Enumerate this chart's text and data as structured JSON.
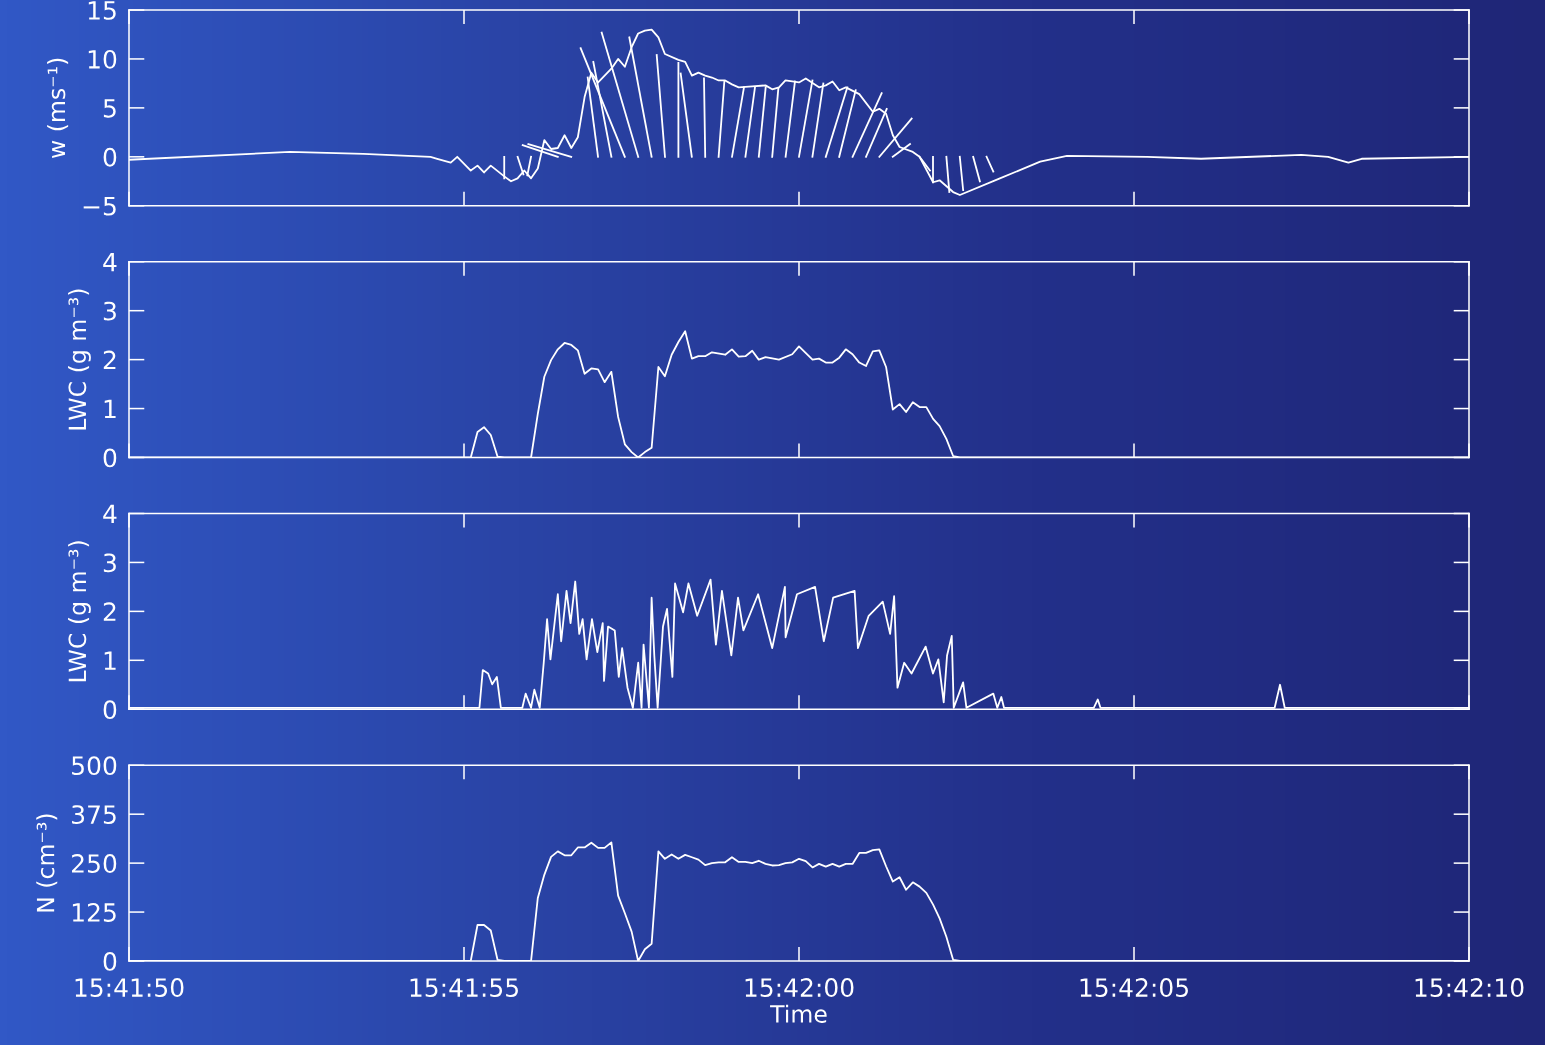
{
  "chart_data": [
    {
      "type": "line",
      "ylabel": "w (ms⁻¹)",
      "tick_labels": "y",
      "xlim": [
        15.697222,
        15.702778
      ],
      "xticks": [
        {
          "value": 15.697222,
          "label": null
        },
        {
          "value": 15.698611,
          "label": null
        },
        {
          "value": 15.7,
          "label": null
        },
        {
          "value": 15.701389,
          "label": null
        },
        {
          "value": 15.702778,
          "label": null
        }
      ],
      "ylim": [
        -5,
        15
      ],
      "yticks": [
        -5,
        0,
        5,
        10,
        15
      ],
      "series": [
        {
          "color": "#ffffff",
          "x": [
            15.697222,
            15.697889,
            15.698194,
            15.698472,
            15.6985,
            15.698556,
            15.698583,
            15.698639,
            15.698667,
            15.698694,
            15.698722,
            15.698778,
            15.698806,
            15.698833,
            15.698861,
            15.698889,
            15.698917,
            15.698944,
            15.698972,
            15.699,
            15.699028,
            15.699056,
            15.699083,
            15.699111,
            15.699139,
            15.699167,
            15.699222,
            15.69925,
            15.699278,
            15.699306,
            15.699333,
            15.699361,
            15.699389,
            15.699417,
            15.699444,
            15.6995,
            15.699528,
            15.699556,
            15.699583,
            15.699611,
            15.699639,
            15.699667,
            15.699694,
            15.699722,
            15.69975,
            15.699806,
            15.699861,
            15.699889,
            15.699917,
            15.699944,
            15.7,
            15.700028,
            15.700083,
            15.700111,
            15.700139,
            15.700167,
            15.700194,
            15.70025,
            15.700306,
            15.700333,
            15.700361,
            15.700389,
            15.700417,
            15.700472,
            15.7005,
            15.700556,
            15.700583,
            15.700639,
            15.700667,
            15.700833,
            15.701,
            15.701111,
            15.701444,
            15.701667,
            15.702083,
            15.702194,
            15.702278,
            15.702333,
            15.702778
          ],
          "values": [
            -0.3,
            0.5,
            0.3,
            0.0,
            -0.2,
            -0.6,
            0,
            -1.4,
            -0.9,
            -1.6,
            -0.9,
            -2.0,
            -2.5,
            -2.2,
            -1.4,
            -2.2,
            -1.2,
            1.7,
            0.8,
            0.9,
            2.2,
            0.9,
            2.0,
            6.1,
            8.6,
            7.6,
            9.0,
            10.0,
            9.2,
            11.2,
            12.6,
            12.9,
            13.0,
            12.2,
            10.5,
            9.9,
            9.7,
            8.3,
            8.6,
            8.3,
            8.1,
            7.8,
            7.8,
            7.4,
            7.1,
            7.2,
            7.3,
            6.9,
            7.1,
            7.8,
            7.6,
            8.0,
            7.1,
            7.3,
            7.7,
            6.8,
            7.1,
            6.4,
            4.6,
            4.9,
            4.4,
            2.2,
            1.0,
            0.5,
            0.0,
            -2.6,
            -2.4,
            -3.6,
            -3.9,
            -2.2,
            -0.5,
            0.1,
            0,
            -0.2,
            0.2,
            0,
            -0.6,
            -0.2,
            0
          ]
        },
        {
          "color": "#ffffff",
          "x": [
            15.6987778,
            15.6987778
          ],
          "values": [
            0,
            -2.2
          ]
        },
        {
          "color": "#ffffff",
          "x": [
            15.6988333,
            15.6988572
          ],
          "values": [
            0,
            -1.8
          ]
        },
        {
          "color": "#ffffff",
          "x": [
            15.6988889,
            15.6988736
          ],
          "values": [
            0,
            -1.9
          ]
        },
        {
          "color": "#ffffff",
          "x": [
            15.699,
            15.6988544
          ],
          "values": [
            0,
            1.2
          ]
        },
        {
          "color": "#ffffff",
          "x": [
            15.6990556,
            15.6988778
          ],
          "values": [
            0,
            1.3
          ]
        },
        {
          "color": "#ffffff",
          "x": [
            15.6991667,
            15.6991239
          ],
          "values": [
            0,
            8.1
          ]
        },
        {
          "color": "#ffffff",
          "x": [
            15.6992222,
            15.6991472
          ],
          "values": [
            0,
            9.7
          ]
        },
        {
          "color": "#ffffff",
          "x": [
            15.6992778,
            15.6990947
          ],
          "values": [
            0,
            11.1
          ]
        },
        {
          "color": "#ffffff",
          "x": [
            15.6993333,
            15.6991819
          ],
          "values": [
            0,
            12.7
          ]
        },
        {
          "color": "#ffffff",
          "x": [
            15.6993889,
            15.6992966
          ],
          "values": [
            0,
            12.2
          ]
        },
        {
          "color": "#ffffff",
          "x": [
            15.6994444,
            15.69941
          ],
          "values": [
            0,
            10.4
          ]
        },
        {
          "color": "#ffffff",
          "x": [
            15.6995,
            15.6995
          ],
          "values": [
            0,
            9.6
          ]
        },
        {
          "color": "#ffffff",
          "x": [
            15.6995556,
            15.6995094
          ],
          "values": [
            0,
            8.5
          ]
        },
        {
          "color": "#ffffff",
          "x": [
            15.6996111,
            15.6996061
          ],
          "values": [
            0,
            8.0
          ]
        },
        {
          "color": "#ffffff",
          "x": [
            15.6996667,
            15.6996905
          ],
          "values": [
            0,
            7.7
          ]
        },
        {
          "color": "#ffffff",
          "x": [
            15.6997222,
            15.6997719
          ],
          "values": [
            0,
            7.1
          ]
        },
        {
          "color": "#ffffff",
          "x": [
            15.6997778,
            15.6998175
          ],
          "values": [
            0,
            7.1
          ]
        },
        {
          "color": "#ffffff",
          "x": [
            15.6998333,
            15.6998619
          ],
          "values": [
            0,
            7.1
          ]
        },
        {
          "color": "#ffffff",
          "x": [
            15.6998889,
            15.6999144
          ],
          "values": [
            0,
            7.0
          ]
        },
        {
          "color": "#ffffff",
          "x": [
            15.6999444,
            15.6999833
          ],
          "values": [
            0,
            7.7
          ]
        },
        {
          "color": "#ffffff",
          "x": [
            15.7,
            15.7000556
          ],
          "values": [
            0,
            7.8
          ]
        },
        {
          "color": "#ffffff",
          "x": [
            15.7000556,
            15.7001008
          ],
          "values": [
            0,
            7.5
          ]
        },
        {
          "color": "#ffffff",
          "x": [
            15.7001111,
            15.7002003
          ],
          "values": [
            0,
            7.1
          ]
        },
        {
          "color": "#ffffff",
          "x": [
            15.7001667,
            15.700235
          ],
          "values": [
            0,
            6.8
          ]
        },
        {
          "color": "#ffffff",
          "x": [
            15.7002222,
            15.7003428
          ],
          "values": [
            0,
            6.5
          ]
        },
        {
          "color": "#ffffff",
          "x": [
            15.7002778,
            15.7003636
          ],
          "values": [
            0,
            4.9
          ]
        },
        {
          "color": "#ffffff",
          "x": [
            15.7003333,
            15.7004672
          ],
          "values": [
            0,
            3.9
          ]
        },
        {
          "color": "#ffffff",
          "x": [
            15.7003889,
            15.7004603
          ],
          "values": [
            0,
            1.3
          ]
        },
        {
          "color": "#ffffff",
          "x": [
            15.7005,
            15.700543
          ],
          "values": [
            0,
            -1.4
          ]
        },
        {
          "color": "#ffffff",
          "x": [
            15.7005556,
            15.7005556
          ],
          "values": [
            0,
            -2.6
          ]
        },
        {
          "color": "#ffffff",
          "x": [
            15.7006111,
            15.7006233
          ],
          "values": [
            0,
            -3.6
          ]
        },
        {
          "color": "#ffffff",
          "x": [
            15.7006667,
            15.7006806
          ],
          "values": [
            0,
            -3.4
          ]
        },
        {
          "color": "#ffffff",
          "x": [
            15.7007222,
            15.70075
          ],
          "values": [
            0,
            -2.5
          ]
        },
        {
          "color": "#ffffff",
          "x": [
            15.7007778,
            15.7008056
          ],
          "values": [
            0,
            -1.5
          ]
        }
      ]
    },
    {
      "type": "line",
      "ylabel": "LWC (g m⁻³)",
      "tick_labels": "y",
      "xlim": [
        15.697222,
        15.702778
      ],
      "xticks": [
        {
          "value": 15.697222,
          "label": null
        },
        {
          "value": 15.698611,
          "label": null
        },
        {
          "value": 15.7,
          "label": null
        },
        {
          "value": 15.701389,
          "label": null
        },
        {
          "value": 15.702778,
          "label": null
        }
      ],
      "ylim": [
        0,
        4
      ],
      "yticks": [
        0,
        1,
        2,
        3,
        4
      ],
      "series": [
        {
          "color": "#ffffff",
          "x": [
            15.697222,
            15.698639,
            15.698667,
            15.698694,
            15.698722,
            15.69875,
            15.698778,
            15.698889,
            15.698917,
            15.698944,
            15.698972,
            15.699,
            15.699028,
            15.699056,
            15.699083,
            15.699111,
            15.699139,
            15.699167,
            15.699194,
            15.699222,
            15.69925,
            15.699278,
            15.699306,
            15.699333,
            15.699361,
            15.699389,
            15.699417,
            15.699444,
            15.699472,
            15.6995,
            15.699528,
            15.699556,
            15.699583,
            15.699611,
            15.699639,
            15.699694,
            15.699722,
            15.69975,
            15.699778,
            15.699806,
            15.699833,
            15.699861,
            15.699917,
            15.699972,
            15.7,
            15.700056,
            15.700083,
            15.700111,
            15.700139,
            15.700167,
            15.700194,
            15.700222,
            15.70025,
            15.700278,
            15.700306,
            15.700333,
            15.700361,
            15.700389,
            15.700417,
            15.700444,
            15.700472,
            15.7005,
            15.700528,
            15.700556,
            15.700583,
            15.700611,
            15.700639,
            15.700667,
            15.702778
          ],
          "values": [
            0,
            0,
            0.52,
            0.62,
            0.46,
            0.02,
            0,
            0,
            0.89,
            1.65,
            1.99,
            2.21,
            2.34,
            2.3,
            2.19,
            1.71,
            1.82,
            1.8,
            1.54,
            1.75,
            0.83,
            0.27,
            0.11,
            0,
            0.11,
            0.2,
            1.85,
            1.66,
            2.1,
            2.36,
            2.58,
            2.02,
            2.07,
            2.07,
            2.15,
            2.1,
            2.21,
            2.06,
            2.07,
            2.18,
            2.0,
            2.05,
            2.0,
            2.11,
            2.27,
            2.0,
            2.02,
            1.94,
            1.94,
            2.04,
            2.21,
            2.11,
            1.94,
            1.87,
            2.17,
            2.19,
            1.85,
            0.98,
            1.09,
            0.93,
            1.13,
            1.03,
            1.03,
            0.79,
            0.64,
            0.38,
            0.03,
            0,
            0
          ]
        }
      ]
    },
    {
      "type": "line",
      "ylabel": "LWC (g m⁻³)",
      "tick_labels": "y",
      "xlim": [
        15.697222,
        15.702778
      ],
      "xticks": [
        {
          "value": 15.697222,
          "label": null
        },
        {
          "value": 15.698611,
          "label": null
        },
        {
          "value": 15.7,
          "label": null
        },
        {
          "value": 15.701389,
          "label": null
        },
        {
          "value": 15.702778,
          "label": null
        }
      ],
      "ylim": [
        0,
        4
      ],
      "yticks": [
        0,
        1,
        2,
        3,
        4
      ],
      "series": [
        {
          "color": "#ffffff",
          "x": [
            15.6972222,
            15.6985111,
            15.698675,
            15.6986889,
            15.6987111,
            15.6987278,
            15.6987472,
            15.6987639,
            15.6988528,
            15.6988666,
            15.6988889,
            15.6989028,
            15.698925,
            15.6989416,
            15.6989555,
            15.6989694,
            15.699,
            15.6990139,
            15.6990361,
            15.6990528,
            15.6990722,
            15.6990889,
            15.6991028,
            15.6991194,
            15.6991416,
            15.6991639,
            15.6991861,
            15.6991916,
            15.6992083,
            15.6992361,
            15.6992528,
            15.6992666,
            15.6992889,
            15.6993111,
            15.6993333,
            15.6993472,
            15.6993555,
            15.6993778,
            15.6993889,
            15.6994,
            15.6994139,
            15.6994361,
            15.6994528,
            15.699475,
            15.6994861,
            15.6995194,
            15.6995416,
            15.6995778,
            15.6996333,
            15.6996555,
            15.6996805,
            15.6997194,
            15.6997472,
            15.6997694,
            15.6998305,
            15.6998889,
            15.6999416,
            15.6999444,
            15.6999916,
            15.7000666,
            15.7001028,
            15.7001416,
            15.7002305,
            15.7002444,
            15.7002889,
            15.7003472,
            15.7003778,
            15.7003944,
            15.7004083,
            15.7004361,
            15.7004666,
            15.700525,
            15.7005555,
            15.7005778,
            15.7006,
            15.7006139,
            15.7006333,
            15.7006416,
            15.7006805,
            15.7006944,
            15.7008055,
            15.7008222,
            15.7008389,
            15.70085,
            15.7012222,
            15.7012389,
            15.70125,
            15.7019722,
            15.7019944,
            15.7020139,
            15.7027778
          ],
          "values": [
            0.03,
            0.03,
            0.03,
            0.8,
            0.73,
            0.51,
            0.66,
            0.03,
            0.03,
            0.32,
            0.03,
            0.4,
            0.03,
            0.95,
            1.84,
            1.02,
            2.35,
            1.39,
            2.42,
            1.76,
            2.61,
            1.54,
            1.84,
            1.02,
            1.84,
            1.17,
            1.76,
            0.58,
            1.69,
            1.61,
            0.66,
            1.25,
            0.44,
            0.03,
            0.95,
            0.03,
            1.32,
            0.03,
            2.28,
            1.1,
            0.03,
            1.69,
            2.05,
            0.66,
            2.57,
            1.98,
            2.57,
            1.91,
            2.65,
            1.32,
            2.42,
            1.1,
            2.28,
            1.61,
            2.35,
            1.25,
            2.5,
            1.47,
            2.35,
            2.5,
            1.39,
            2.28,
            2.42,
            1.25,
            1.91,
            2.2,
            1.54,
            2.31,
            0.44,
            0.95,
            0.73,
            1.28,
            0.73,
            1.02,
            0.14,
            1.1,
            1.5,
            0.03,
            0.55,
            0.03,
            0.32,
            0.03,
            0.25,
            0.03,
            0.03,
            0.2,
            0.03,
            0.03,
            0.5,
            0.03,
            0.03
          ]
        }
      ]
    },
    {
      "type": "line",
      "ylabel": "N (cm⁻³)",
      "xlabel": "Time",
      "xlim": [
        15.697222,
        15.702778
      ],
      "xticks": [
        {
          "value": 15.697222,
          "label": "15:41:50"
        },
        {
          "value": 15.698611,
          "label": "15:41:55"
        },
        {
          "value": 15.7,
          "label": "15:42:00"
        },
        {
          "value": 15.701389,
          "label": "15:42:05"
        },
        {
          "value": 15.702778,
          "label": "15:42:10"
        }
      ],
      "ylim": [
        0,
        500
      ],
      "yticks": [
        0,
        125,
        250,
        375,
        500
      ],
      "series": [
        {
          "color": "#ffffff",
          "x": [
            15.697222,
            15.698639,
            15.698667,
            15.698694,
            15.698722,
            15.69875,
            15.698778,
            15.698889,
            15.698917,
            15.698944,
            15.698972,
            15.699,
            15.699028,
            15.699056,
            15.699083,
            15.699111,
            15.699139,
            15.699167,
            15.699194,
            15.699222,
            15.69925,
            15.699278,
            15.699306,
            15.699333,
            15.699361,
            15.699389,
            15.699417,
            15.699444,
            15.699472,
            15.6995,
            15.699528,
            15.699556,
            15.699583,
            15.699611,
            15.699639,
            15.699667,
            15.699694,
            15.699722,
            15.69975,
            15.699778,
            15.699806,
            15.699833,
            15.699861,
            15.699889,
            15.699917,
            15.699944,
            15.699972,
            15.7,
            15.700028,
            15.700056,
            15.700083,
            15.700111,
            15.700139,
            15.700167,
            15.700194,
            15.700222,
            15.70025,
            15.700278,
            15.700306,
            15.700333,
            15.700361,
            15.700389,
            15.700417,
            15.700444,
            15.700472,
            15.7005,
            15.700528,
            15.700556,
            15.700583,
            15.700611,
            15.700639,
            15.700667,
            15.702778
          ],
          "values": [
            0,
            0,
            92,
            92,
            78,
            3,
            0,
            0,
            161,
            220,
            266,
            280,
            270,
            270,
            290,
            290,
            302,
            289,
            289,
            303,
            167,
            122,
            75,
            0,
            30,
            44,
            280,
            261,
            272,
            261,
            271,
            265,
            259,
            245,
            250,
            252,
            252,
            265,
            253,
            253,
            250,
            256,
            248,
            244,
            245,
            250,
            252,
            261,
            255,
            239,
            248,
            241,
            248,
            241,
            248,
            248,
            276,
            276,
            283,
            285,
            242,
            203,
            214,
            182,
            201,
            190,
            174,
            144,
            109,
            62,
            3,
            0,
            0
          ]
        }
      ]
    }
  ]
}
